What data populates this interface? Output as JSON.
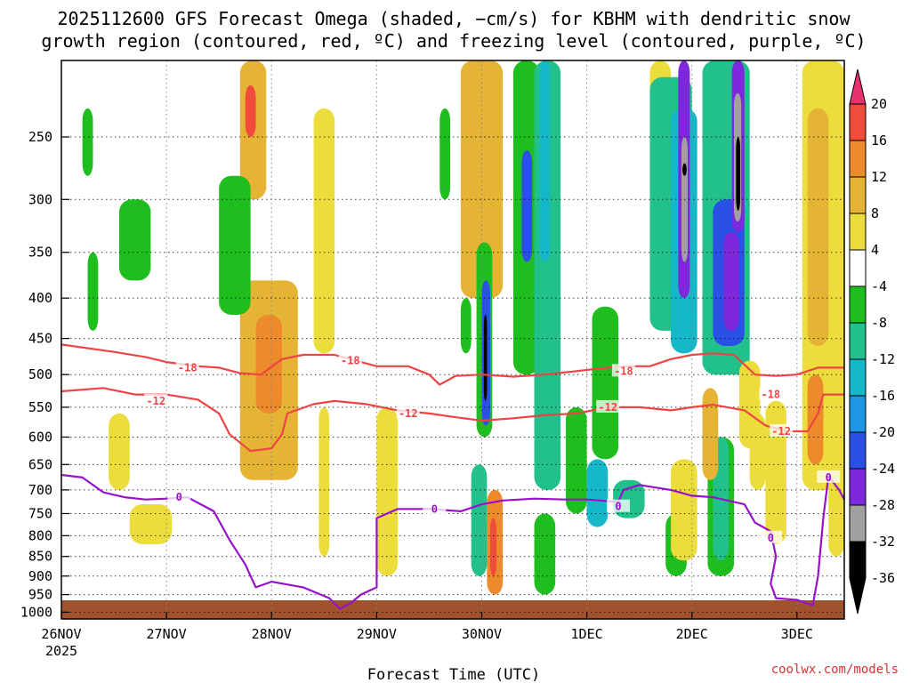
{
  "chart_data": {
    "type": "heatmap",
    "title_line1": "2025112600 GFS Forecast Omega (shaded, −cm/s) for KBHM with dendritic snow",
    "title_line2": "growth region (contoured, red, ºC) and freezing level (contoured, purple, ºC)",
    "xlabel": "Forecast Time (UTC)",
    "credit": "coolwx.com/models",
    "x_ticks": [
      {
        "label": "26NOV",
        "day": 0,
        "sub": "2025"
      },
      {
        "label": "27NOV",
        "day": 1
      },
      {
        "label": "28NOV",
        "day": 2
      },
      {
        "label": "29NOV",
        "day": 3
      },
      {
        "label": "30NOV",
        "day": 4
      },
      {
        "label": "1DEC",
        "day": 5
      },
      {
        "label": "2DEC",
        "day": 6
      },
      {
        "label": "3DEC",
        "day": 7
      }
    ],
    "xlim_days": [
      0,
      7.45
    ],
    "y_ticks": [
      250,
      300,
      350,
      400,
      450,
      500,
      550,
      600,
      650,
      700,
      750,
      800,
      850,
      900,
      950,
      1000
    ],
    "ylim_hpa": [
      200,
      1020
    ],
    "y_scale": "log",
    "grid": true,
    "colorbar": {
      "labels": [
        "20",
        "16",
        "12",
        "8",
        "4",
        "-4",
        "-8",
        "-12",
        "-16",
        "-20",
        "-24",
        "-28",
        "-32",
        "-36"
      ],
      "colors": [
        "#e8326e",
        "#f04c3c",
        "#ec8a2c",
        "#e6b434",
        "#ecdc3c",
        "#ffffff",
        "#1fbe1f",
        "#22c08a",
        "#14b8c8",
        "#1e96e6",
        "#2a50e6",
        "#7d28dc",
        "#a0a0a0",
        "#000000"
      ]
    },
    "blobs": [
      {
        "x0": 1.7,
        "x1": 1.95,
        "p0": 200,
        "p1": 300,
        "color": "#e6b434"
      },
      {
        "x0": 1.75,
        "x1": 1.85,
        "p0": 215,
        "p1": 250,
        "color": "#f04c3c"
      },
      {
        "x0": 1.7,
        "x1": 2.25,
        "p0": 380,
        "p1": 680,
        "color": "#e6b434"
      },
      {
        "x0": 1.85,
        "x1": 2.1,
        "p0": 420,
        "p1": 560,
        "color": "#ec8a2c"
      },
      {
        "x0": 1.5,
        "x1": 1.8,
        "p0": 280,
        "p1": 420,
        "color": "#1fbe1f"
      },
      {
        "x0": 0.45,
        "x1": 0.65,
        "p0": 560,
        "p1": 700,
        "color": "#ecdc3c"
      },
      {
        "x0": 0.65,
        "x1": 1.05,
        "p0": 730,
        "p1": 820,
        "color": "#ecdc3c"
      },
      {
        "x0": 0.55,
        "x1": 0.85,
        "p0": 300,
        "p1": 380,
        "color": "#1fbe1f"
      },
      {
        "x0": 2.4,
        "x1": 2.6,
        "p0": 230,
        "p1": 470,
        "color": "#ecdc3c"
      },
      {
        "x0": 2.45,
        "x1": 2.55,
        "p0": 550,
        "p1": 850,
        "color": "#ecdc3c"
      },
      {
        "x0": 3.0,
        "x1": 3.2,
        "p0": 550,
        "p1": 900,
        "color": "#ecdc3c"
      },
      {
        "x0": 3.8,
        "x1": 4.2,
        "p0": 200,
        "p1": 400,
        "color": "#e6b434"
      },
      {
        "x0": 3.95,
        "x1": 4.1,
        "p0": 340,
        "p1": 600,
        "color": "#1fbe1f"
      },
      {
        "x0": 4.0,
        "x1": 4.08,
        "p0": 380,
        "p1": 580,
        "color": "#2a50e6"
      },
      {
        "x0": 4.02,
        "x1": 4.05,
        "p0": 420,
        "p1": 540,
        "color": "#000000"
      },
      {
        "x0": 4.05,
        "x1": 4.2,
        "p0": 700,
        "p1": 950,
        "color": "#ec8a2c"
      },
      {
        "x0": 4.08,
        "x1": 4.14,
        "p0": 760,
        "p1": 900,
        "color": "#f04c3c"
      },
      {
        "x0": 3.9,
        "x1": 4.05,
        "p0": 650,
        "p1": 900,
        "color": "#22c08a"
      },
      {
        "x0": 4.3,
        "x1": 4.55,
        "p0": 200,
        "p1": 500,
        "color": "#1fbe1f"
      },
      {
        "x0": 4.38,
        "x1": 4.48,
        "p0": 260,
        "p1": 360,
        "color": "#2a50e6"
      },
      {
        "x0": 4.5,
        "x1": 4.75,
        "p0": 200,
        "p1": 700,
        "color": "#22c08a"
      },
      {
        "x0": 4.55,
        "x1": 4.65,
        "p0": 200,
        "p1": 360,
        "color": "#14b8c8"
      },
      {
        "x0": 4.5,
        "x1": 4.7,
        "p0": 750,
        "p1": 950,
        "color": "#1fbe1f"
      },
      {
        "x0": 4.8,
        "x1": 5.0,
        "p0": 550,
        "p1": 750,
        "color": "#1fbe1f"
      },
      {
        "x0": 5.0,
        "x1": 5.2,
        "p0": 640,
        "p1": 780,
        "color": "#14b8c8"
      },
      {
        "x0": 5.05,
        "x1": 5.3,
        "p0": 410,
        "p1": 640,
        "color": "#1fbe1f"
      },
      {
        "x0": 5.25,
        "x1": 5.55,
        "p0": 680,
        "p1": 760,
        "color": "#22c08a"
      },
      {
        "x0": 5.6,
        "x1": 5.8,
        "p0": 200,
        "p1": 280,
        "color": "#ecdc3c"
      },
      {
        "x0": 5.6,
        "x1": 6.0,
        "p0": 210,
        "p1": 440,
        "color": "#22c08a"
      },
      {
        "x0": 5.8,
        "x1": 6.05,
        "p0": 230,
        "p1": 470,
        "color": "#14b8c8"
      },
      {
        "x0": 5.87,
        "x1": 5.98,
        "p0": 200,
        "p1": 400,
        "color": "#7d28dc"
      },
      {
        "x0": 5.9,
        "x1": 5.96,
        "p0": 250,
        "p1": 360,
        "color": "#a0a0a0"
      },
      {
        "x0": 5.91,
        "x1": 5.95,
        "p0": 270,
        "p1": 280,
        "color": "#000000"
      },
      {
        "x0": 6.1,
        "x1": 6.55,
        "p0": 200,
        "p1": 500,
        "color": "#22c08a"
      },
      {
        "x0": 6.2,
        "x1": 6.5,
        "p0": 300,
        "p1": 460,
        "color": "#2a50e6"
      },
      {
        "x0": 6.3,
        "x1": 6.45,
        "p0": 330,
        "p1": 440,
        "color": "#7d28dc"
      },
      {
        "x0": 6.38,
        "x1": 6.5,
        "p0": 200,
        "p1": 330,
        "color": "#7d28dc"
      },
      {
        "x0": 6.4,
        "x1": 6.47,
        "p0": 220,
        "p1": 320,
        "color": "#a0a0a0"
      },
      {
        "x0": 6.42,
        "x1": 6.46,
        "p0": 250,
        "p1": 310,
        "color": "#000000"
      },
      {
        "x0": 6.15,
        "x1": 6.4,
        "p0": 600,
        "p1": 900,
        "color": "#1fbe1f"
      },
      {
        "x0": 6.2,
        "x1": 6.35,
        "p0": 600,
        "p1": 860,
        "color": "#22c08a"
      },
      {
        "x0": 5.75,
        "x1": 5.95,
        "p0": 750,
        "p1": 900,
        "color": "#1fbe1f"
      },
      {
        "x0": 5.8,
        "x1": 6.05,
        "p0": 640,
        "p1": 860,
        "color": "#ecdc3c"
      },
      {
        "x0": 6.1,
        "x1": 6.25,
        "p0": 520,
        "p1": 680,
        "color": "#e6b434"
      },
      {
        "x0": 6.45,
        "x1": 6.65,
        "p0": 480,
        "p1": 620,
        "color": "#ecdc3c"
      },
      {
        "x0": 6.55,
        "x1": 6.7,
        "p0": 560,
        "p1": 700,
        "color": "#ecdc3c"
      },
      {
        "x0": 6.7,
        "x1": 6.9,
        "p0": 540,
        "p1": 820,
        "color": "#ecdc3c"
      },
      {
        "x0": 7.05,
        "x1": 7.45,
        "p0": 200,
        "p1": 700,
        "color": "#ecdc3c"
      },
      {
        "x0": 7.1,
        "x1": 7.3,
        "p0": 230,
        "p1": 460,
        "color": "#e6b434"
      },
      {
        "x0": 7.1,
        "x1": 7.25,
        "p0": 500,
        "p1": 650,
        "color": "#ec8a2c"
      },
      {
        "x0": 7.3,
        "x1": 7.45,
        "p0": 650,
        "p1": 850,
        "color": "#ecdc3c"
      },
      {
        "x0": 0.2,
        "x1": 0.3,
        "p0": 230,
        "p1": 280,
        "color": "#1fbe1f"
      },
      {
        "x0": 0.25,
        "x1": 0.35,
        "p0": 350,
        "p1": 440,
        "color": "#1fbe1f"
      },
      {
        "x0": 3.6,
        "x1": 3.7,
        "p0": 230,
        "p1": 300,
        "color": "#1fbe1f"
      },
      {
        "x0": 3.8,
        "x1": 3.9,
        "p0": 400,
        "p1": 470,
        "color": "#1fbe1f"
      }
    ],
    "series": [
      {
        "name": "-18",
        "color": "#ee4444",
        "label_at": [
          [
            1.2,
            490
          ],
          [
            2.75,
            480
          ],
          [
            5.35,
            495
          ],
          [
            6.75,
            530
          ]
        ],
        "points": [
          [
            0,
            458
          ],
          [
            0.5,
            468
          ],
          [
            0.8,
            475
          ],
          [
            1.0,
            482
          ],
          [
            1.3,
            488
          ],
          [
            1.5,
            490
          ],
          [
            1.7,
            498
          ],
          [
            1.9,
            500
          ],
          [
            2.1,
            478
          ],
          [
            2.3,
            472
          ],
          [
            2.6,
            472
          ],
          [
            2.8,
            480
          ],
          [
            3.0,
            488
          ],
          [
            3.3,
            488
          ],
          [
            3.5,
            500
          ],
          [
            3.6,
            515
          ],
          [
            3.75,
            502
          ],
          [
            4.0,
            500
          ],
          [
            4.3,
            503
          ],
          [
            4.6,
            500
          ],
          [
            4.9,
            495
          ],
          [
            5.2,
            490
          ],
          [
            5.4,
            488
          ],
          [
            5.6,
            488
          ],
          [
            5.8,
            478
          ],
          [
            6.0,
            472
          ],
          [
            6.2,
            470
          ],
          [
            6.4,
            472
          ],
          [
            6.6,
            500
          ],
          [
            6.8,
            502
          ],
          [
            7.0,
            500
          ],
          [
            7.2,
            490
          ],
          [
            7.45,
            490
          ]
        ]
      },
      {
        "name": "-12",
        "color": "#ee4444",
        "label_at": [
          [
            0.9,
            540
          ],
          [
            3.3,
            560
          ],
          [
            5.2,
            550
          ],
          [
            6.85,
            590
          ]
        ],
        "points": [
          [
            0,
            525
          ],
          [
            0.4,
            520
          ],
          [
            0.7,
            530
          ],
          [
            1.0,
            530
          ],
          [
            1.3,
            538
          ],
          [
            1.5,
            560
          ],
          [
            1.6,
            595
          ],
          [
            1.8,
            625
          ],
          [
            2.0,
            620
          ],
          [
            2.1,
            595
          ],
          [
            2.15,
            560
          ],
          [
            2.4,
            545
          ],
          [
            2.6,
            540
          ],
          [
            2.9,
            545
          ],
          [
            3.2,
            555
          ],
          [
            3.5,
            560
          ],
          [
            3.7,
            565
          ],
          [
            4.0,
            572
          ],
          [
            4.3,
            568
          ],
          [
            4.6,
            563
          ],
          [
            4.9,
            560
          ],
          [
            5.2,
            550
          ],
          [
            5.5,
            550
          ],
          [
            5.8,
            555
          ],
          [
            6.0,
            550
          ],
          [
            6.2,
            546
          ],
          [
            6.5,
            555
          ],
          [
            6.7,
            580
          ],
          [
            6.9,
            590
          ],
          [
            7.1,
            590
          ],
          [
            7.2,
            560
          ],
          [
            7.25,
            530
          ],
          [
            7.45,
            530
          ]
        ]
      },
      {
        "name": "0",
        "color": "#9911cc",
        "label_at": [
          [
            1.12,
            715
          ],
          [
            3.55,
            740
          ],
          [
            5.3,
            735
          ],
          [
            6.75,
            805
          ],
          [
            7.3,
            675
          ]
        ],
        "points": [
          [
            0,
            670
          ],
          [
            0.2,
            675
          ],
          [
            0.4,
            705
          ],
          [
            0.6,
            715
          ],
          [
            0.8,
            720
          ],
          [
            1.0,
            718
          ],
          [
            1.2,
            715
          ],
          [
            1.45,
            745
          ],
          [
            1.6,
            810
          ],
          [
            1.75,
            870
          ],
          [
            1.85,
            930
          ],
          [
            2.0,
            915
          ],
          [
            2.3,
            930
          ],
          [
            2.55,
            960
          ],
          [
            2.65,
            990
          ],
          [
            2.75,
            975
          ],
          [
            2.85,
            950
          ],
          [
            3.0,
            930
          ],
          [
            3.0,
            760
          ],
          [
            3.2,
            740
          ],
          [
            3.5,
            740
          ],
          [
            3.8,
            745
          ],
          [
            4.0,
            730
          ],
          [
            4.2,
            722
          ],
          [
            4.5,
            718
          ],
          [
            4.8,
            720
          ],
          [
            5.0,
            720
          ],
          [
            5.3,
            725
          ],
          [
            5.35,
            700
          ],
          [
            5.5,
            690
          ],
          [
            5.8,
            700
          ],
          [
            6.0,
            712
          ],
          [
            6.2,
            715
          ],
          [
            6.5,
            730
          ],
          [
            6.6,
            770
          ],
          [
            6.75,
            790
          ],
          [
            6.8,
            850
          ],
          [
            6.75,
            920
          ],
          [
            6.8,
            960
          ],
          [
            7.0,
            965
          ],
          [
            7.15,
            980
          ],
          [
            7.2,
            900
          ],
          [
            7.25,
            760
          ],
          [
            7.3,
            672
          ],
          [
            7.4,
            700
          ],
          [
            7.45,
            720
          ]
        ]
      }
    ]
  }
}
